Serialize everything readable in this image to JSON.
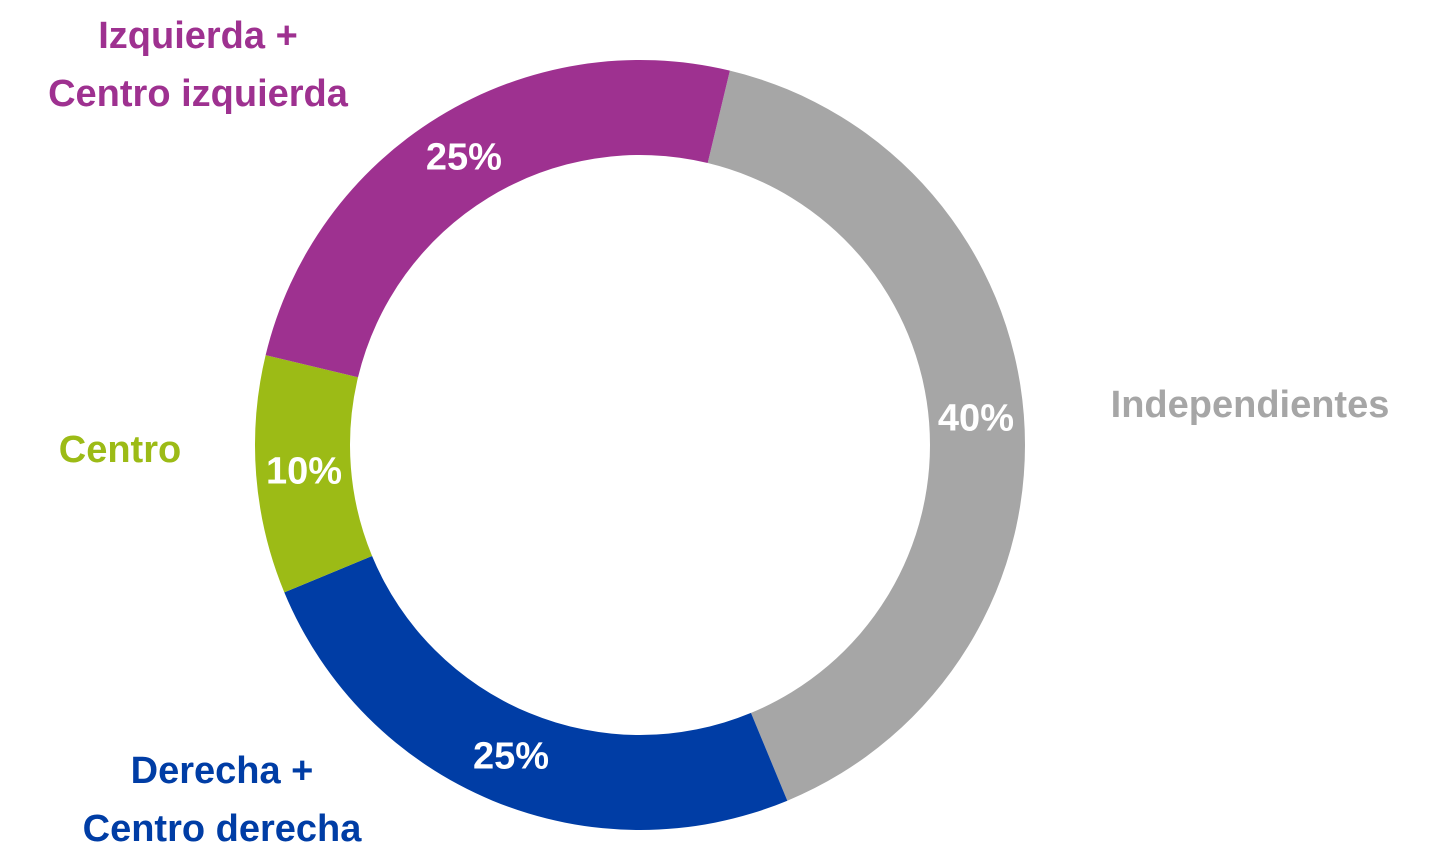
{
  "chart_data": {
    "type": "donut",
    "categories": [
      "Independientes",
      "Derecha +\nCentro derecha",
      "Centro",
      "Izquierda +\nCentro izquierda"
    ],
    "values": [
      40,
      25,
      10,
      25
    ],
    "value_labels": [
      "40%",
      "25%",
      "10%",
      "25%"
    ],
    "colors": [
      "#a6a6a6",
      "#003da5",
      "#9cbb16",
      "#9e3190"
    ]
  }
}
